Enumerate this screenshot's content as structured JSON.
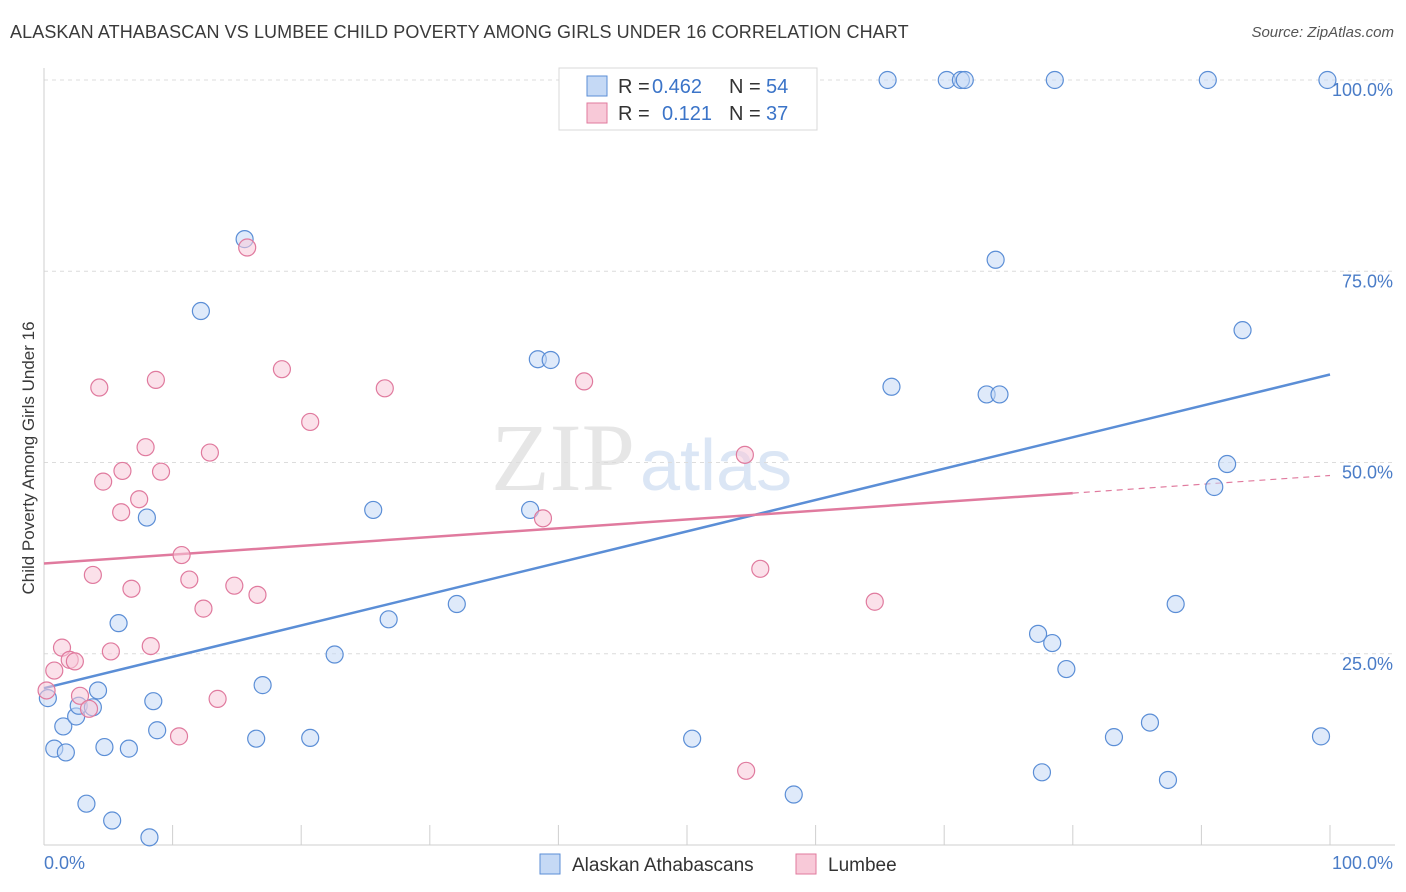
{
  "chart_data": {
    "type": "scatter",
    "title": "ALASKAN ATHABASCAN VS LUMBEE CHILD POVERTY AMONG GIRLS UNDER 16 CORRELATION CHART",
    "source": "Source: ZipAtlas.com",
    "ylabel": "Child Poverty Among Girls Under 16",
    "xlim": [
      0,
      100
    ],
    "ylim": [
      0,
      100
    ],
    "x_tick_labels": [
      "0.0%",
      "100.0%"
    ],
    "y_tick_labels": [
      {
        "value": 25,
        "label": "25.0%"
      },
      {
        "value": 50,
        "label": "50.0%"
      },
      {
        "value": 75,
        "label": "75.0%"
      },
      {
        "value": 100,
        "label": "100.0%"
      }
    ],
    "watermark": "ZIPatlas",
    "legend": {
      "rows": [
        {
          "r_label": "R =",
          "r_value": "0.462",
          "n_label": "N =",
          "n_value": "54"
        },
        {
          "r_label": "R =",
          "r_value": "0.121",
          "n_label": "N =",
          "n_value": "37"
        }
      ]
    },
    "series": [
      {
        "name": "Alaskan Athabascans",
        "color": "#5b8ed6",
        "fill": "#c5d9f5",
        "trend": {
          "x0": 0,
          "y0": 20.5,
          "x1": 100,
          "y1": 61.5,
          "dash_from": null
        },
        "points": [
          [
            0.3,
            19.2
          ],
          [
            0.8,
            12.6
          ],
          [
            1.5,
            15.5
          ],
          [
            1.7,
            12.1
          ],
          [
            2.5,
            16.8
          ],
          [
            2.7,
            18.2
          ],
          [
            3.3,
            5.4
          ],
          [
            3.8,
            18.0
          ],
          [
            4.2,
            20.2
          ],
          [
            4.7,
            12.8
          ],
          [
            5.3,
            3.2
          ],
          [
            5.8,
            29.0
          ],
          [
            6.6,
            12.6
          ],
          [
            8.2,
            1.0
          ],
          [
            8.5,
            18.8
          ],
          [
            8.8,
            15.0
          ],
          [
            8.0,
            42.8
          ],
          [
            12.2,
            69.8
          ],
          [
            15.6,
            79.2
          ],
          [
            16.5,
            13.9
          ],
          [
            17.0,
            20.9
          ],
          [
            20.7,
            14.0
          ],
          [
            22.6,
            24.9
          ],
          [
            25.6,
            43.8
          ],
          [
            26.8,
            29.5
          ],
          [
            32.1,
            31.5
          ],
          [
            37.8,
            43.8
          ],
          [
            38.4,
            63.5
          ],
          [
            39.4,
            63.4
          ],
          [
            50.4,
            13.9
          ],
          [
            58.3,
            6.6
          ],
          [
            65.6,
            100
          ],
          [
            65.9,
            59.9
          ],
          [
            70.2,
            100
          ],
          [
            71.3,
            100
          ],
          [
            71.6,
            100
          ],
          [
            73.3,
            58.9
          ],
          [
            74.0,
            76.5
          ],
          [
            74.3,
            58.9
          ],
          [
            77.3,
            27.6
          ],
          [
            77.6,
            9.5
          ],
          [
            78.4,
            26.4
          ],
          [
            79.5,
            23.0
          ],
          [
            78.6,
            100
          ],
          [
            83.2,
            14.1
          ],
          [
            86.0,
            16.0
          ],
          [
            87.4,
            8.5
          ],
          [
            88.0,
            31.5
          ],
          [
            90.5,
            100
          ],
          [
            91.0,
            46.8
          ],
          [
            92.0,
            49.8
          ],
          [
            93.2,
            67.3
          ],
          [
            99.3,
            14.2
          ],
          [
            99.8,
            100
          ]
        ]
      },
      {
        "name": "Lumbee",
        "color": "#e07a9e",
        "fill": "#f8c9d8",
        "trend": {
          "x0": 0,
          "y0": 36.8,
          "x1": 100,
          "y1": 48.3,
          "dash_from": 80
        },
        "points": [
          [
            0.2,
            20.2
          ],
          [
            0.8,
            22.8
          ],
          [
            1.4,
            25.8
          ],
          [
            2.0,
            24.2
          ],
          [
            2.4,
            24.0
          ],
          [
            2.8,
            19.5
          ],
          [
            3.5,
            17.8
          ],
          [
            3.8,
            35.3
          ],
          [
            4.3,
            59.8
          ],
          [
            4.6,
            47.5
          ],
          [
            5.2,
            25.3
          ],
          [
            6.0,
            43.5
          ],
          [
            6.1,
            48.9
          ],
          [
            6.8,
            33.5
          ],
          [
            7.4,
            45.2
          ],
          [
            7.9,
            52.0
          ],
          [
            8.3,
            26.0
          ],
          [
            8.7,
            60.8
          ],
          [
            9.1,
            48.8
          ],
          [
            10.5,
            14.2
          ],
          [
            10.7,
            37.9
          ],
          [
            11.3,
            34.7
          ],
          [
            12.4,
            30.9
          ],
          [
            12.9,
            51.3
          ],
          [
            13.5,
            19.1
          ],
          [
            14.8,
            33.9
          ],
          [
            15.8,
            78.1
          ],
          [
            16.6,
            32.7
          ],
          [
            18.5,
            62.2
          ],
          [
            20.7,
            55.3
          ],
          [
            26.5,
            59.7
          ],
          [
            38.8,
            42.7
          ],
          [
            42.0,
            60.6
          ],
          [
            54.5,
            51.0
          ],
          [
            54.6,
            9.7
          ],
          [
            55.7,
            36.1
          ],
          [
            64.6,
            31.8
          ]
        ]
      }
    ]
  }
}
